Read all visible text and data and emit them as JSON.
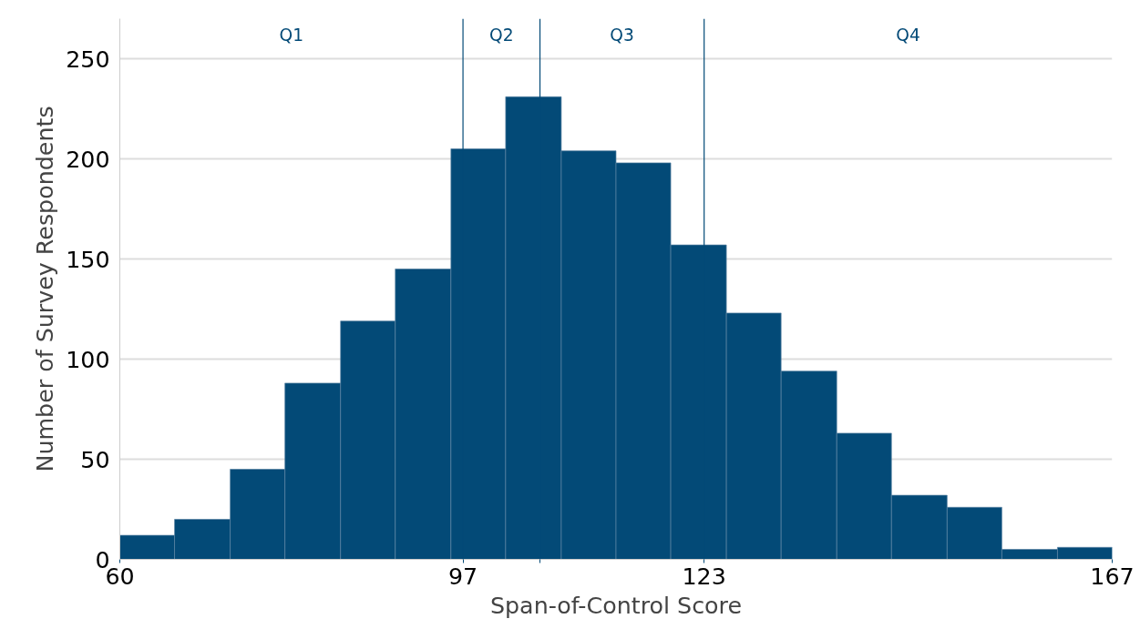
{
  "chart_data": {
    "type": "histogram",
    "xlabel": "Span-of-Control Score",
    "ylabel": "Number of Survey Respondents",
    "bins": [
      60,
      65.9,
      71.9,
      77.8,
      83.8,
      89.7,
      95.7,
      101.6,
      107.6,
      113.5,
      119.4,
      125.4,
      131.3,
      137.3,
      143.2,
      149.2,
      155.1,
      161.1,
      167
    ],
    "values": [
      12,
      20,
      45,
      88,
      119,
      145,
      205,
      231,
      204,
      198,
      157,
      123,
      94,
      63,
      32,
      26,
      5,
      6
    ],
    "color": "#034a77",
    "xlim": [
      60,
      167
    ],
    "xticks": [
      60,
      97,
      {
        "value": 105.3,
        "label": null
      },
      123,
      167
    ],
    "ylim": [
      0,
      270
    ],
    "yticks": [
      0,
      50,
      100,
      150,
      200,
      250
    ],
    "grid": "y",
    "ref_lines": [
      {
        "axis": "x",
        "value": 97,
        "color": "#034a77"
      },
      {
        "axis": "x",
        "value": 105.3,
        "color": "#034a77"
      },
      {
        "axis": "x",
        "value": 123,
        "color": "#034a77"
      }
    ],
    "annotations": [
      "Q1",
      "Q2",
      "Q3",
      "Q4"
    ]
  }
}
